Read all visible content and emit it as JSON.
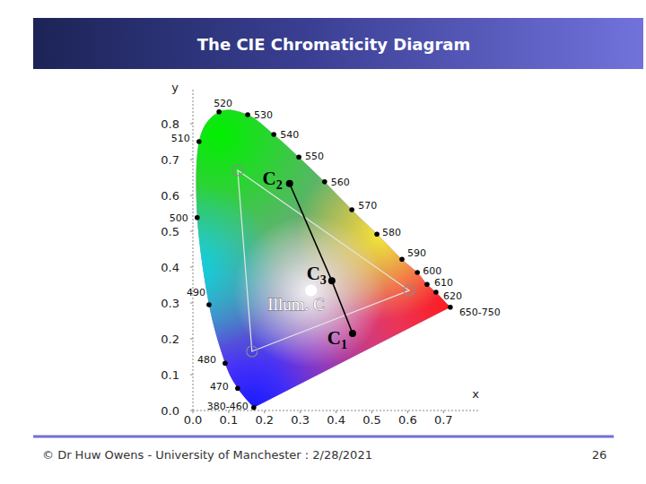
{
  "header": {
    "title": "The CIE Chromaticity Diagram"
  },
  "footer": {
    "text": "© Dr Huw Owens - University of Manchester : 2/28/2021",
    "page": 26
  },
  "chart_data": {
    "type": "scatter",
    "x_label": "x",
    "y_label": "y",
    "xlim": [
      0,
      0.8
    ],
    "ylim": [
      0,
      0.9
    ],
    "xticks": [
      {
        "value": 0,
        "label": "0.0"
      },
      0.1,
      0.2,
      0.3,
      0.4,
      0.5,
      0.6,
      0.7
    ],
    "yticks": [
      {
        "value": 0,
        "label": "0.0"
      },
      0.1,
      0.2,
      0.3,
      0.4,
      0.5,
      0.6,
      0.7,
      0.8
    ],
    "grid": false,
    "series": [
      {
        "color": "#000000",
        "marker": "circle",
        "x": [
          0.17,
          0.125,
          0.09,
          0.045,
          0.012,
          0.017,
          0.073,
          0.153,
          0.226,
          0.296,
          0.368,
          0.444,
          0.514,
          0.584,
          0.627,
          0.654,
          0.679,
          0.719
        ],
        "values": [
          0.008,
          0.062,
          0.132,
          0.295,
          0.538,
          0.75,
          0.833,
          0.825,
          0.77,
          0.707,
          0.638,
          0.56,
          0.492,
          0.422,
          0.385,
          0.352,
          0.33,
          0.288
        ],
        "labels": [
          "380-460",
          "470",
          "480",
          "490",
          "500",
          "510",
          "520",
          "530",
          "540",
          "550",
          "560",
          "570",
          "580",
          "590",
          "600",
          "610",
          "620",
          "650-750"
        ]
      },
      {
        "color": "#e6e6e6",
        "marker": "open_circle",
        "line_style": "solid",
        "x": [
          0.125,
          0.604,
          0.165
        ],
        "values": [
          0.67,
          0.335,
          0.165
        ]
      },
      {
        "color": "#000000",
        "marker": "circle",
        "line_style": "solid",
        "x": [
          0.27,
          0.388,
          0.446
        ],
        "values": [
          0.633,
          0.362,
          0.215
        ],
        "labels": [
          "C",
          "C",
          "C"
        ],
        "subscripts": [
          "2",
          "3",
          "1"
        ]
      },
      {
        "color": "#ffffff",
        "marker": "circle",
        "x": [
          0.33
        ],
        "values": [
          0.335
        ],
        "labels": [
          "Illum. C"
        ]
      }
    ]
  }
}
